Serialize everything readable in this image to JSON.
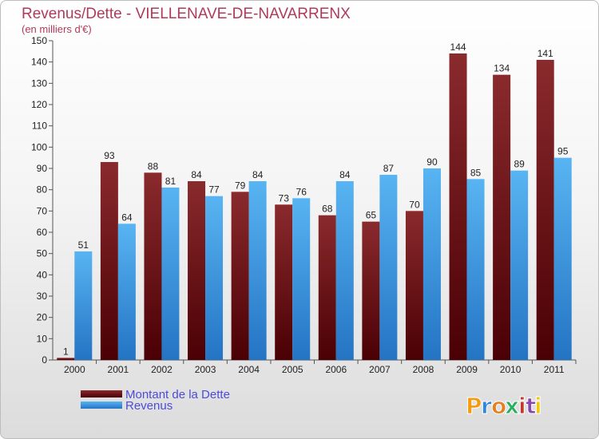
{
  "chart_data": {
    "type": "bar",
    "title": "Revenus/Dette - VIELLENAVE-DE-NAVARRENX",
    "subtitle": "(en milliers d'€)",
    "categories": [
      "2000",
      "2001",
      "2002",
      "2003",
      "2004",
      "2005",
      "2006",
      "2007",
      "2008",
      "2009",
      "2010",
      "2011"
    ],
    "series": [
      {
        "name": "Montant de la Dette",
        "values": [
          1,
          93,
          88,
          84,
          79,
          73,
          68,
          65,
          70,
          144,
          134,
          141
        ],
        "color": "#7a1518"
      },
      {
        "name": "Revenus",
        "values": [
          51,
          64,
          81,
          77,
          84,
          76,
          84,
          87,
          90,
          85,
          89,
          95
        ],
        "color": "#3f9ee8"
      }
    ],
    "ylim": [
      0,
      150
    ],
    "yticks": [
      0,
      10,
      20,
      30,
      40,
      50,
      60,
      70,
      80,
      90,
      100,
      110,
      120,
      130,
      140,
      150
    ],
    "grid": false,
    "legend_position": "bottom-left"
  },
  "logo": {
    "letters": [
      "P",
      "r",
      "o",
      "x",
      "i",
      "t",
      "i"
    ],
    "colors": [
      "#f39c12",
      "#2e86de",
      "#e67e22",
      "#27ae60",
      "#c0392b",
      "#8e44ad",
      "#f1c40f"
    ]
  }
}
